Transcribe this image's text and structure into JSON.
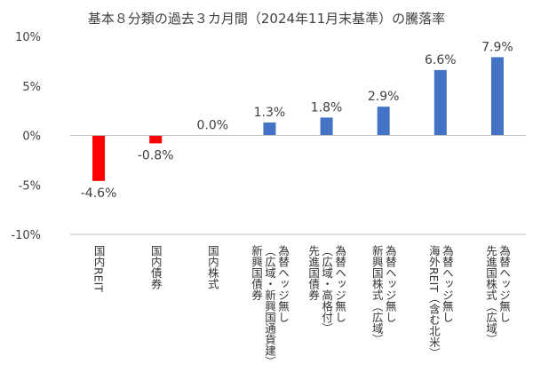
{
  "chart_data": {
    "type": "bar",
    "title": "基本８分類の過去３カ月間（2024年11月末基準）の騰落率",
    "xlabel": "",
    "ylabel": "",
    "ylim": [
      -10,
      10
    ],
    "yticks": [
      "10%",
      "5%",
      "0%",
      "-5%",
      "-10%"
    ],
    "ytick_values": [
      10,
      5,
      0,
      -5,
      -10
    ],
    "grid": false,
    "legend": "none",
    "categories": [
      [
        "国内REIT"
      ],
      [
        "国内債券"
      ],
      [
        "国内株式"
      ],
      [
        "為替ヘッジ無し",
        "（広域・新興国通貨建）",
        "新興国債券"
      ],
      [
        "為替ヘッジ無し",
        "（広域・高格付）",
        "先進国債券"
      ],
      [
        "為替ヘッジ無し",
        "新興国株式（広域）"
      ],
      [
        "為替ヘッジ無し",
        "海外REIT（含む北米）"
      ],
      [
        "為替ヘッジ無し",
        "先進国株式（広域）"
      ]
    ],
    "values": [
      -4.6,
      -0.8,
      0.0,
      1.3,
      1.8,
      2.9,
      6.6,
      7.9
    ],
    "value_labels": [
      "-4.6%",
      "-0.8%",
      "0.0%",
      "1.3%",
      "1.8%",
      "2.9%",
      "6.6%",
      "7.9%"
    ],
    "colors": {
      "positive": "#4472C4",
      "negative": "#FF0000",
      "axis": "#BFBFBF",
      "text": "#404040"
    }
  }
}
